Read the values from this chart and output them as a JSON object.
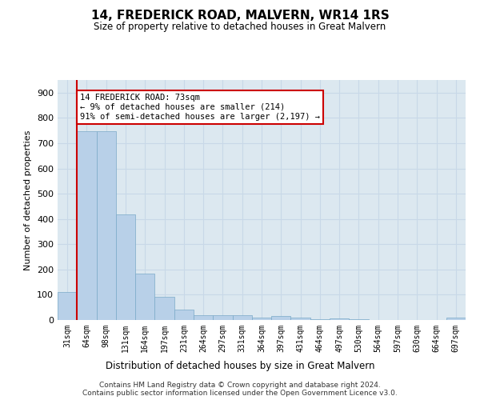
{
  "title": "14, FREDERICK ROAD, MALVERN, WR14 1RS",
  "subtitle": "Size of property relative to detached houses in Great Malvern",
  "xlabel": "Distribution of detached houses by size in Great Malvern",
  "ylabel": "Number of detached properties",
  "bar_color": "#b8d0e8",
  "bar_edge_color": "#7aaac8",
  "grid_color": "#c8d8e8",
  "background_color": "#dce8f0",
  "annotation_box_color": "#cc0000",
  "vline_color": "#cc0000",
  "vline_x_index": 1,
  "annotation_text": "14 FREDERICK ROAD: 73sqm\n← 9% of detached houses are smaller (214)\n91% of semi-detached houses are larger (2,197) →",
  "categories": [
    "31sqm",
    "64sqm",
    "98sqm",
    "131sqm",
    "164sqm",
    "197sqm",
    "231sqm",
    "264sqm",
    "297sqm",
    "331sqm",
    "364sqm",
    "397sqm",
    "431sqm",
    "464sqm",
    "497sqm",
    "530sqm",
    "564sqm",
    "597sqm",
    "630sqm",
    "664sqm",
    "697sqm"
  ],
  "values": [
    110,
    748,
    748,
    418,
    185,
    93,
    40,
    18,
    20,
    18,
    10,
    15,
    10,
    2,
    5,
    2,
    0,
    0,
    0,
    0,
    8
  ],
  "ylim": [
    0,
    950
  ],
  "yticks": [
    0,
    100,
    200,
    300,
    400,
    500,
    600,
    700,
    800,
    900
  ],
  "footer1": "Contains HM Land Registry data © Crown copyright and database right 2024.",
  "footer2": "Contains public sector information licensed under the Open Government Licence v3.0.",
  "fig_bg": "#ffffff"
}
